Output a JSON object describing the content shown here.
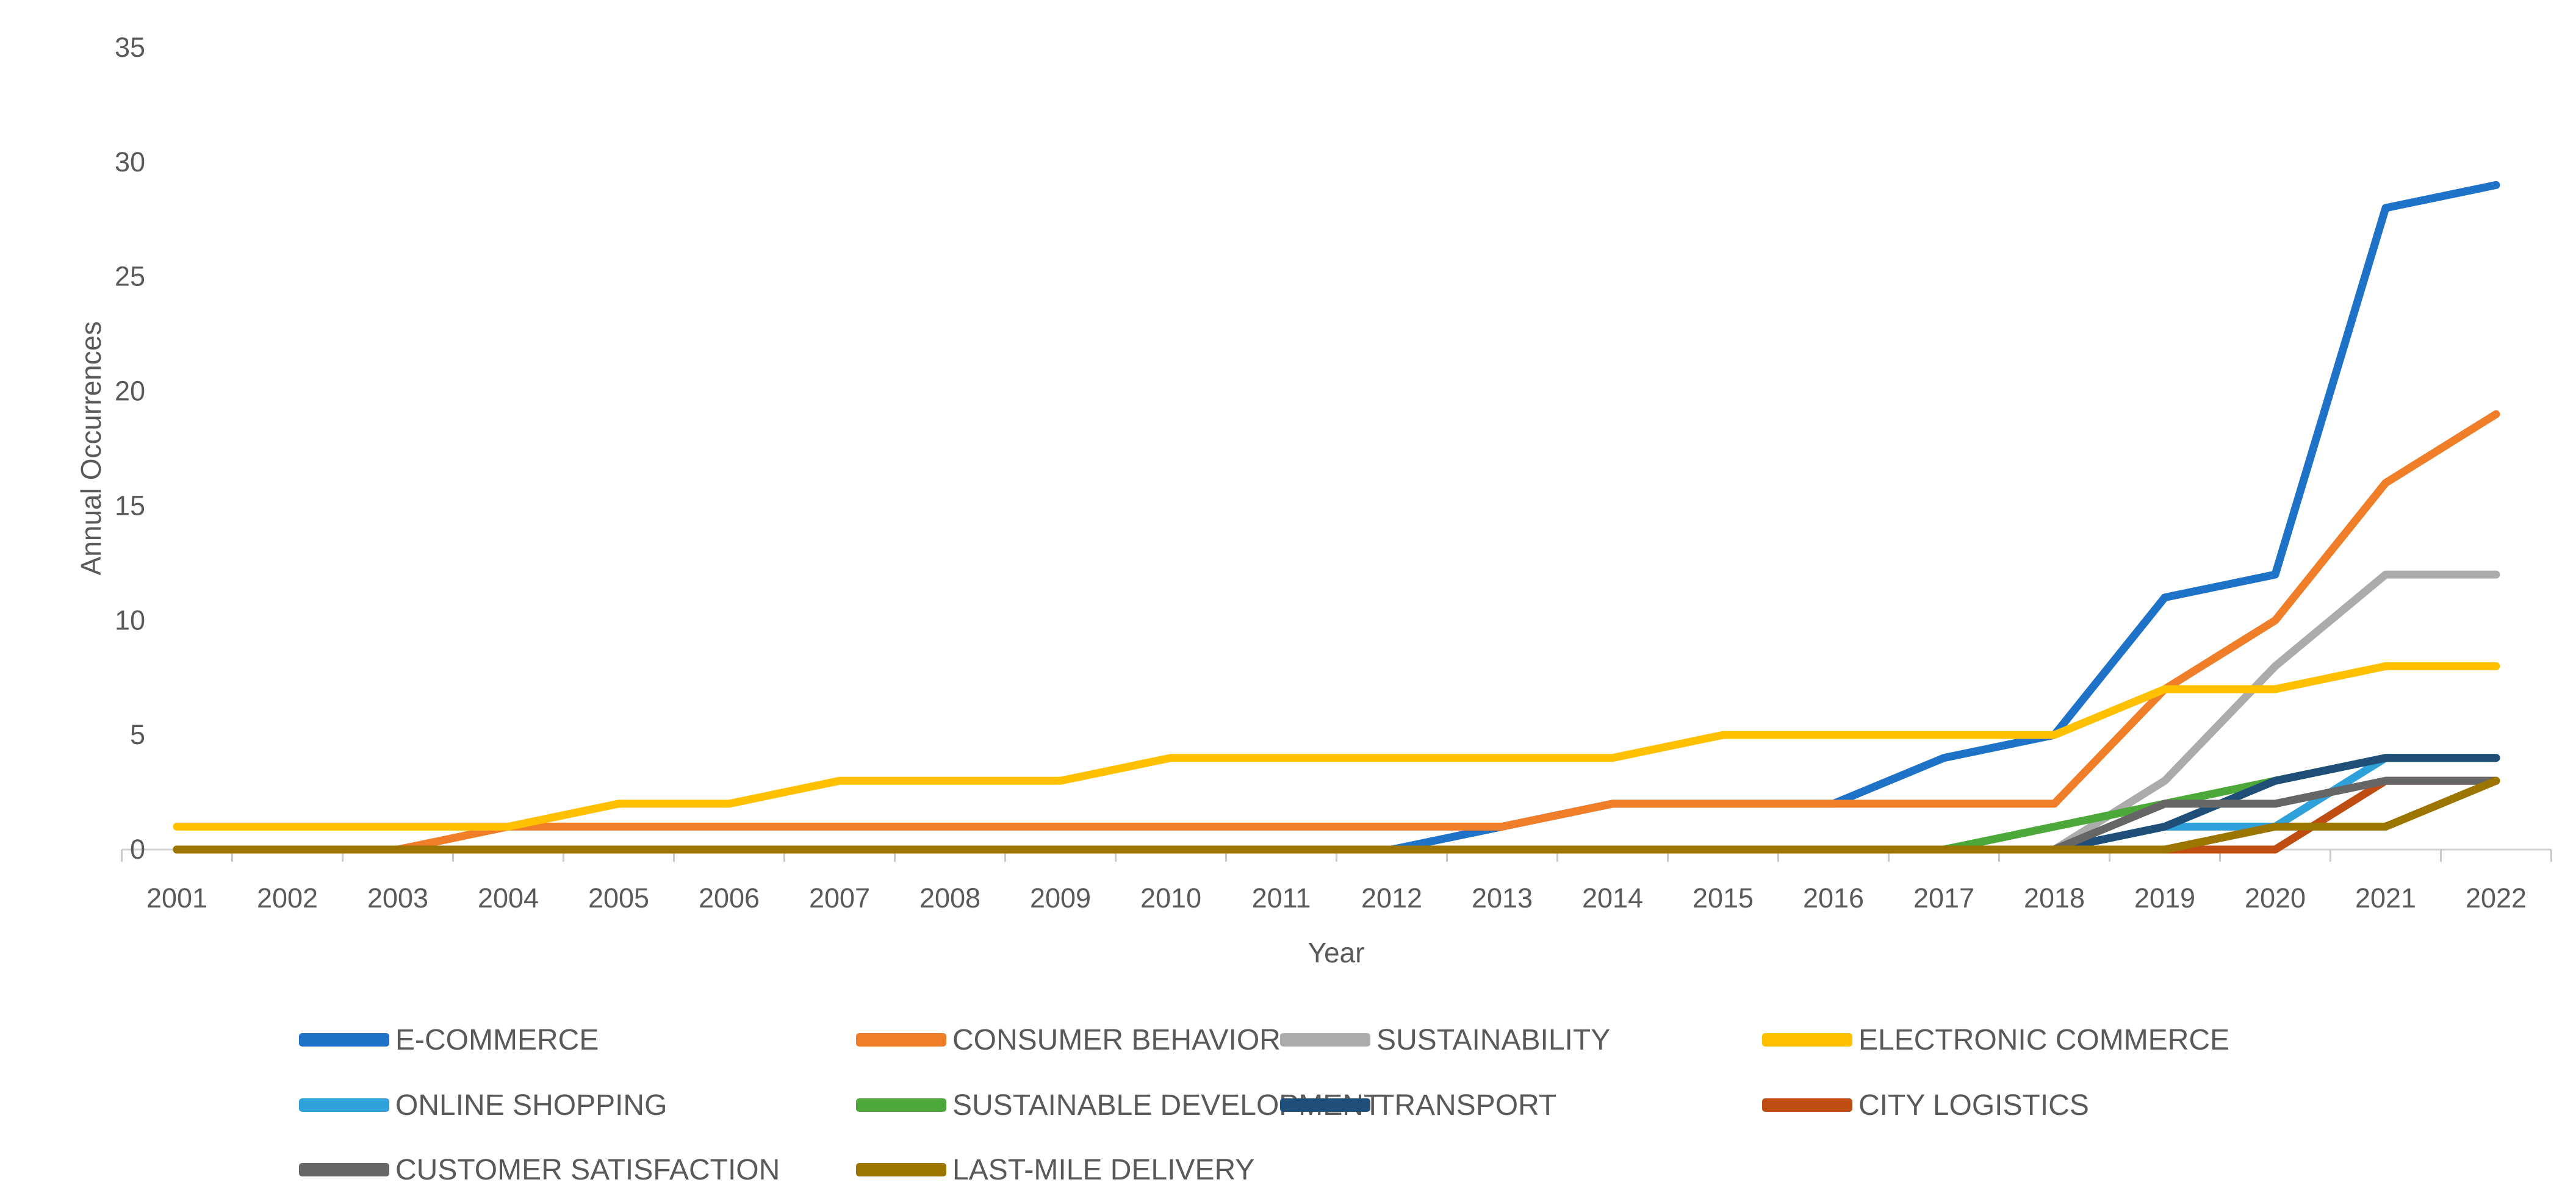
{
  "chart_data": {
    "type": "line",
    "title": "",
    "xlabel": "Year",
    "ylabel": "Annual Occurrences",
    "x": [
      2001,
      2002,
      2003,
      2004,
      2005,
      2006,
      2007,
      2008,
      2009,
      2010,
      2011,
      2012,
      2013,
      2014,
      2015,
      2016,
      2017,
      2018,
      2019,
      2020,
      2021,
      2022
    ],
    "ylim": [
      0,
      35
    ],
    "yticks": [
      0,
      5,
      10,
      15,
      20,
      25,
      30,
      35
    ],
    "grid": false,
    "legend_position": "bottom",
    "legend_columns": 4,
    "series": [
      {
        "name": "E-COMMERCE",
        "color": "#1E73C8",
        "values": [
          0,
          0,
          0,
          0,
          0,
          0,
          0,
          0,
          0,
          0,
          0,
          0,
          1,
          2,
          2,
          2,
          4,
          5,
          11,
          12,
          28,
          29
        ]
      },
      {
        "name": "CONSUMER BEHAVIOR",
        "color": "#F07D28",
        "values": [
          0,
          0,
          0,
          1,
          1,
          1,
          1,
          1,
          1,
          1,
          1,
          1,
          1,
          2,
          2,
          2,
          2,
          2,
          7,
          10,
          16,
          19
        ]
      },
      {
        "name": "SUSTAINABILITY",
        "color": "#ABABAB",
        "values": [
          0,
          0,
          0,
          0,
          0,
          0,
          0,
          0,
          0,
          0,
          0,
          0,
          0,
          0,
          0,
          0,
          0,
          0,
          3,
          8,
          12,
          12
        ]
      },
      {
        "name": "ELECTRONIC COMMERCE",
        "color": "#FFC000",
        "values": [
          1,
          1,
          1,
          1,
          2,
          2,
          3,
          3,
          3,
          4,
          4,
          4,
          4,
          4,
          5,
          5,
          5,
          5,
          7,
          7,
          8,
          8
        ]
      },
      {
        "name": "ONLINE SHOPPING",
        "color": "#2EA1DB",
        "values": [
          0,
          0,
          0,
          0,
          0,
          0,
          0,
          0,
          0,
          0,
          0,
          0,
          0,
          0,
          0,
          0,
          0,
          0,
          1,
          1,
          4,
          4
        ]
      },
      {
        "name": "SUSTAINABLE DEVELOPMENT",
        "color": "#4CA838",
        "values": [
          0,
          0,
          0,
          0,
          0,
          0,
          0,
          0,
          0,
          0,
          0,
          0,
          0,
          0,
          0,
          0,
          0,
          1,
          2,
          3,
          4,
          4
        ]
      },
      {
        "name": "TRANSPORT",
        "color": "#1F4E79",
        "values": [
          0,
          0,
          0,
          0,
          0,
          0,
          0,
          0,
          0,
          0,
          0,
          0,
          0,
          0,
          0,
          0,
          0,
          0,
          1,
          3,
          4,
          4
        ]
      },
      {
        "name": "CITY LOGISTICS",
        "color": "#BF4D12",
        "values": [
          0,
          0,
          0,
          0,
          0,
          0,
          0,
          0,
          0,
          0,
          0,
          0,
          0,
          0,
          0,
          0,
          0,
          0,
          0,
          0,
          3,
          3
        ]
      },
      {
        "name": "CUSTOMER SATISFACTION",
        "color": "#666666",
        "values": [
          0,
          0,
          0,
          0,
          0,
          0,
          0,
          0,
          0,
          0,
          0,
          0,
          0,
          0,
          0,
          0,
          0,
          0,
          2,
          2,
          3,
          3
        ]
      },
      {
        "name": "LAST-MILE DELIVERY",
        "color": "#9C7500",
        "values": [
          0,
          0,
          0,
          0,
          0,
          0,
          0,
          0,
          0,
          0,
          0,
          0,
          0,
          0,
          0,
          0,
          0,
          0,
          0,
          1,
          1,
          3
        ]
      }
    ],
    "colors": {
      "text": "#595959",
      "axis_line": "#D2D2D2",
      "tick_mark": "#C9C9C9"
    }
  }
}
